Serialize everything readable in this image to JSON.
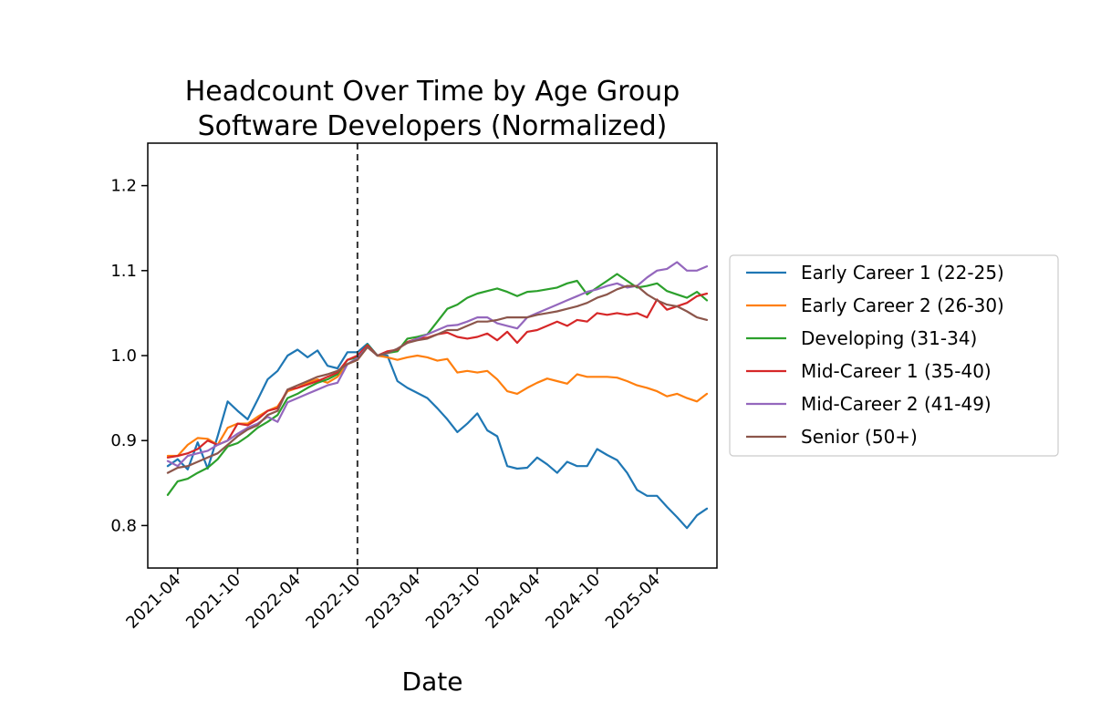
{
  "chart_data": {
    "type": "line",
    "title": "Headcount Over Time by Age Group",
    "subtitle": "Software Developers (Normalized)",
    "xlabel": "Date",
    "ylabel": "",
    "ylim": [
      0.75,
      1.25
    ],
    "yticks": [
      0.8,
      0.9,
      1.0,
      1.1,
      1.2
    ],
    "ytick_labels": [
      "0.8",
      "0.9",
      "1.0",
      "1.1",
      "1.2"
    ],
    "xlim": [
      2021.0,
      2025.75
    ],
    "xticks": [
      2021.25,
      2021.75,
      2022.25,
      2022.75,
      2023.25,
      2023.75,
      2024.25,
      2024.75,
      2025.25
    ],
    "xtick_labels": [
      "2021-04",
      "2021-10",
      "2022-04",
      "2022-10",
      "2023-04",
      "2023-10",
      "2024-04",
      "2024-10",
      "2025-04"
    ],
    "vline_x": 2022.75,
    "x_start": 2021.1667,
    "x_step": 0.08333,
    "legend_position": "outside-right",
    "series": [
      {
        "name": "Early Career 1 (22-25)",
        "color": "#1f77b4",
        "values": [
          0.87,
          0.878,
          0.866,
          0.898,
          0.867,
          0.905,
          0.946,
          0.935,
          0.925,
          0.948,
          0.972,
          0.982,
          1.0,
          1.007,
          0.998,
          1.006,
          0.988,
          0.985,
          1.004,
          1.004,
          1.014,
          1.0,
          1.0,
          0.97,
          0.962,
          0.956,
          0.95,
          0.938,
          0.925,
          0.91,
          0.92,
          0.932,
          0.912,
          0.905,
          0.87,
          0.867,
          0.868,
          0.88,
          0.872,
          0.862,
          0.875,
          0.87,
          0.87,
          0.89,
          0.883,
          0.877,
          0.862,
          0.842,
          0.835,
          0.835,
          0.822,
          0.81,
          0.797,
          0.812,
          0.82
        ]
      },
      {
        "name": "Early Career 2 (26-30)",
        "color": "#ff7f0e",
        "values": [
          0.882,
          0.882,
          0.895,
          0.903,
          0.902,
          0.895,
          0.915,
          0.92,
          0.92,
          0.928,
          0.935,
          0.94,
          0.958,
          0.962,
          0.968,
          0.972,
          0.968,
          0.975,
          0.99,
          0.995,
          1.01,
          1.0,
          0.998,
          0.995,
          0.998,
          1.0,
          0.998,
          0.994,
          0.996,
          0.98,
          0.982,
          0.98,
          0.982,
          0.972,
          0.958,
          0.955,
          0.962,
          0.968,
          0.973,
          0.97,
          0.967,
          0.978,
          0.975,
          0.975,
          0.975,
          0.974,
          0.97,
          0.965,
          0.962,
          0.958,
          0.952,
          0.955,
          0.95,
          0.946,
          0.955
        ]
      },
      {
        "name": "Developing (31-34)",
        "color": "#2ca02c",
        "values": [
          0.836,
          0.852,
          0.855,
          0.862,
          0.868,
          0.878,
          0.893,
          0.897,
          0.905,
          0.915,
          0.922,
          0.93,
          0.95,
          0.955,
          0.962,
          0.968,
          0.972,
          0.978,
          0.995,
          0.998,
          1.013,
          1.0,
          1.003,
          1.005,
          1.02,
          1.022,
          1.025,
          1.04,
          1.055,
          1.06,
          1.068,
          1.073,
          1.076,
          1.079,
          1.075,
          1.07,
          1.075,
          1.076,
          1.078,
          1.08,
          1.085,
          1.088,
          1.072,
          1.08,
          1.088,
          1.096,
          1.088,
          1.08,
          1.082,
          1.085,
          1.076,
          1.072,
          1.068,
          1.075,
          1.065
        ]
      },
      {
        "name": "Mid-Career 1 (35-40)",
        "color": "#d62728",
        "values": [
          0.88,
          0.882,
          0.885,
          0.89,
          0.9,
          0.895,
          0.9,
          0.92,
          0.918,
          0.925,
          0.935,
          0.938,
          0.96,
          0.962,
          0.966,
          0.97,
          0.975,
          0.98,
          0.995,
          1.0,
          1.012,
          1.0,
          1.005,
          1.007,
          1.016,
          1.02,
          1.021,
          1.025,
          1.027,
          1.022,
          1.02,
          1.022,
          1.026,
          1.018,
          1.028,
          1.015,
          1.028,
          1.03,
          1.035,
          1.04,
          1.035,
          1.042,
          1.04,
          1.05,
          1.048,
          1.05,
          1.048,
          1.05,
          1.045,
          1.066,
          1.054,
          1.058,
          1.062,
          1.07,
          1.073
        ]
      },
      {
        "name": "Mid-Career 2 (41-49)",
        "color": "#9467bd",
        "values": [
          0.876,
          0.87,
          0.882,
          0.885,
          0.888,
          0.895,
          0.9,
          0.908,
          0.915,
          0.92,
          0.928,
          0.922,
          0.945,
          0.95,
          0.955,
          0.96,
          0.965,
          0.968,
          0.99,
          0.997,
          1.01,
          1.0,
          1.003,
          1.008,
          1.015,
          1.02,
          1.025,
          1.03,
          1.035,
          1.036,
          1.04,
          1.045,
          1.045,
          1.038,
          1.035,
          1.032,
          1.045,
          1.05,
          1.055,
          1.06,
          1.065,
          1.07,
          1.075,
          1.078,
          1.082,
          1.085,
          1.08,
          1.082,
          1.092,
          1.1,
          1.102,
          1.11,
          1.1,
          1.1,
          1.105
        ]
      },
      {
        "name": "Senior (50+)",
        "color": "#8c564b",
        "values": [
          0.862,
          0.868,
          0.87,
          0.875,
          0.88,
          0.885,
          0.895,
          0.905,
          0.913,
          0.918,
          0.93,
          0.935,
          0.96,
          0.965,
          0.97,
          0.975,
          0.978,
          0.982,
          0.99,
          0.995,
          1.01,
          1.0,
          1.003,
          1.008,
          1.015,
          1.018,
          1.02,
          1.025,
          1.03,
          1.03,
          1.035,
          1.04,
          1.04,
          1.042,
          1.045,
          1.045,
          1.045,
          1.048,
          1.05,
          1.052,
          1.055,
          1.058,
          1.062,
          1.068,
          1.072,
          1.078,
          1.082,
          1.082,
          1.072,
          1.065,
          1.06,
          1.058,
          1.052,
          1.045,
          1.042
        ]
      }
    ]
  }
}
